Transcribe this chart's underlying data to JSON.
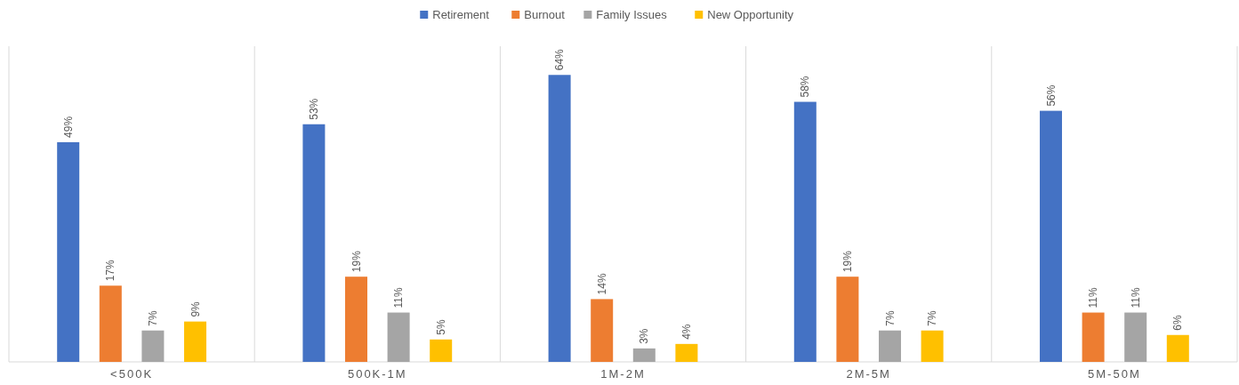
{
  "chart_data": {
    "type": "bar",
    "categories": [
      "<500K",
      "500K-1M",
      "1M-2M",
      "2M-5M",
      "5M-50M"
    ],
    "series": [
      {
        "name": "Retirement",
        "color": "#4472c4",
        "values": [
          49,
          53,
          64,
          58,
          56
        ],
        "value_labels": [
          "49%",
          "53%",
          "64%",
          "58%",
          "56%"
        ]
      },
      {
        "name": "Burnout",
        "color": "#ed7d31",
        "values": [
          17,
          19,
          14,
          19,
          11
        ],
        "value_labels": [
          "17%",
          "19%",
          "14%",
          "19%",
          "11%"
        ]
      },
      {
        "name": "Family Issues",
        "color": "#a5a5a5",
        "values": [
          7,
          11,
          3,
          7,
          11
        ],
        "value_labels": [
          "7%",
          "11%",
          "3%",
          "7%",
          "11%"
        ]
      },
      {
        "name": "New Opportunity",
        "color": "#ffc000",
        "values": [
          9,
          5,
          4,
          7,
          6
        ],
        "value_labels": [
          "9%",
          "5%",
          "4%",
          "7%",
          "6%"
        ]
      }
    ],
    "legend": "top",
    "grid": "x"
  }
}
